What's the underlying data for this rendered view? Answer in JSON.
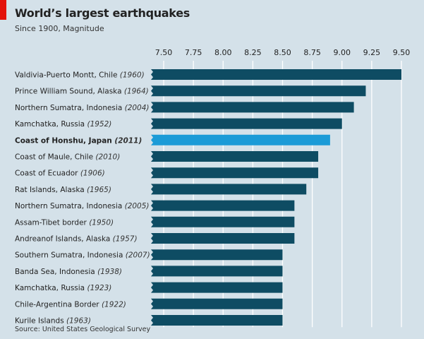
{
  "chart_data": {
    "type": "bar",
    "orientation": "horizontal",
    "title": "World’s largest earthquakes",
    "subtitle": "Since 1900, Magnitude",
    "source": "Source: United States Geological Survey",
    "xlim": [
      7.5,
      9.5
    ],
    "xticks": [
      "7.50",
      "7.75",
      "8.00",
      "8.25",
      "8.50",
      "8.75",
      "9.00",
      "9.25",
      "9.50"
    ],
    "grid": true,
    "colors": {
      "default": "#0e4c63",
      "highlight": "#1b9bd7",
      "grid": "#ffffff"
    },
    "rows": [
      {
        "place": "Valdivia-Puerto Montt, Chile",
        "year": "(1960)",
        "value": 9.5
      },
      {
        "place": "Prince William Sound, Alaska",
        "year": "(1964)",
        "value": 9.2
      },
      {
        "place": "Northern Sumatra, Indonesia",
        "year": "(2004)",
        "value": 9.1
      },
      {
        "place": "Kamchatka, Russia",
        "year": "(1952)",
        "value": 9.0
      },
      {
        "place": "Coast of Honshu, Japan",
        "year": "(2011)",
        "value": 8.9,
        "highlight": true
      },
      {
        "place": "Coast of Maule, Chile",
        "year": "(2010)",
        "value": 8.8
      },
      {
        "place": "Coast of Ecuador",
        "year": "(1906)",
        "value": 8.8
      },
      {
        "place": "Rat Islands, Alaska",
        "year": "(1965)",
        "value": 8.7
      },
      {
        "place": "Northern Sumatra, Indonesia",
        "year": "(2005)",
        "value": 8.6
      },
      {
        "place": "Assam-Tibet border",
        "year": "(1950)",
        "value": 8.6
      },
      {
        "place": "Andreanof Islands, Alaska",
        "year": "(1957)",
        "value": 8.6
      },
      {
        "place": "Southern Sumatra, Indonesia",
        "year": "(2007)",
        "value": 8.5
      },
      {
        "place": "Banda Sea, Indonesia",
        "year": "(1938)",
        "value": 8.5
      },
      {
        "place": "Kamchatka, Russia",
        "year": "(1923)",
        "value": 8.5
      },
      {
        "place": "Chile-Argentina Border",
        "year": "(1922)",
        "value": 8.5
      },
      {
        "place": "Kurile Islands",
        "year": "(1963)",
        "value": 8.5
      }
    ]
  }
}
